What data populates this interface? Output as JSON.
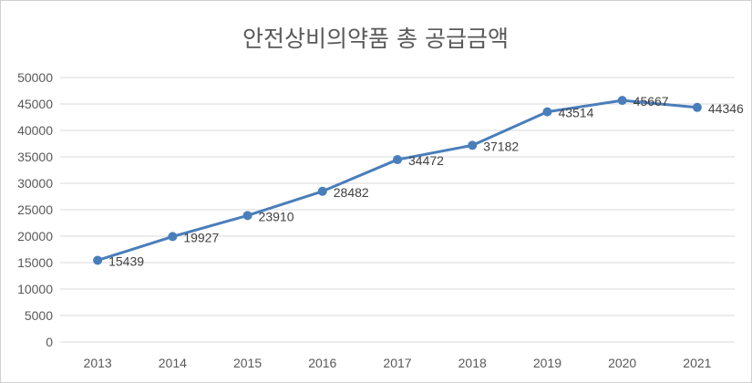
{
  "chart_data": {
    "type": "line",
    "title": "안전상비의약품 총 공급금액",
    "xlabel": "",
    "ylabel": "",
    "categories": [
      "2013",
      "2014",
      "2015",
      "2016",
      "2017",
      "2018",
      "2019",
      "2020",
      "2021"
    ],
    "series": [
      {
        "values": [
          15439,
          19927,
          23910,
          28482,
          34472,
          37182,
          43514,
          45667,
          44346
        ],
        "color": "#4a7ebb",
        "data_labels": [
          "15439",
          "19927",
          "23910",
          "28482",
          "34472",
          "37182",
          "43514",
          "45667",
          "44346"
        ]
      }
    ],
    "y_ticks": [
      "0",
      "5000",
      "10000",
      "15000",
      "20000",
      "25000",
      "30000",
      "35000",
      "40000",
      "45000",
      "50000"
    ],
    "ylim": [
      0,
      50000
    ],
    "grid": true,
    "legend": "none",
    "colors": {
      "line": "#4a7ebb",
      "grid": "#d9d9d9",
      "text": "#595959"
    }
  }
}
